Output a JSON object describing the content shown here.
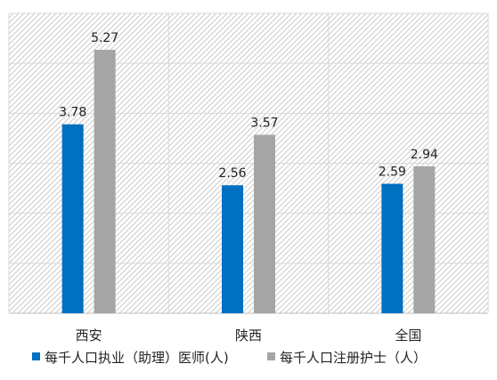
{
  "chart_data": {
    "type": "bar",
    "title": "",
    "xlabel": "",
    "ylabel": "",
    "categories": [
      "西安",
      "陕西",
      "全国"
    ],
    "series": [
      {
        "name": "每千人口执业（助理）医师(人)",
        "values": [
          3.78,
          2.56,
          2.59
        ],
        "color": "#0070c0"
      },
      {
        "name": "每千人口注册护士（人）",
        "values": [
          5.27,
          3.57,
          2.94
        ],
        "color": "#a5a5a5"
      }
    ],
    "data_labels": [
      [
        "3.78",
        "2.56",
        "2.59"
      ],
      [
        "5.27",
        "3.57",
        "2.94"
      ]
    ],
    "ylim": [
      0,
      6
    ],
    "y_gridlines": 6,
    "y_tick_labels_shown": false,
    "grid": true,
    "plot_background": "diagonal hatch (light gray)",
    "legend_position": "bottom"
  }
}
